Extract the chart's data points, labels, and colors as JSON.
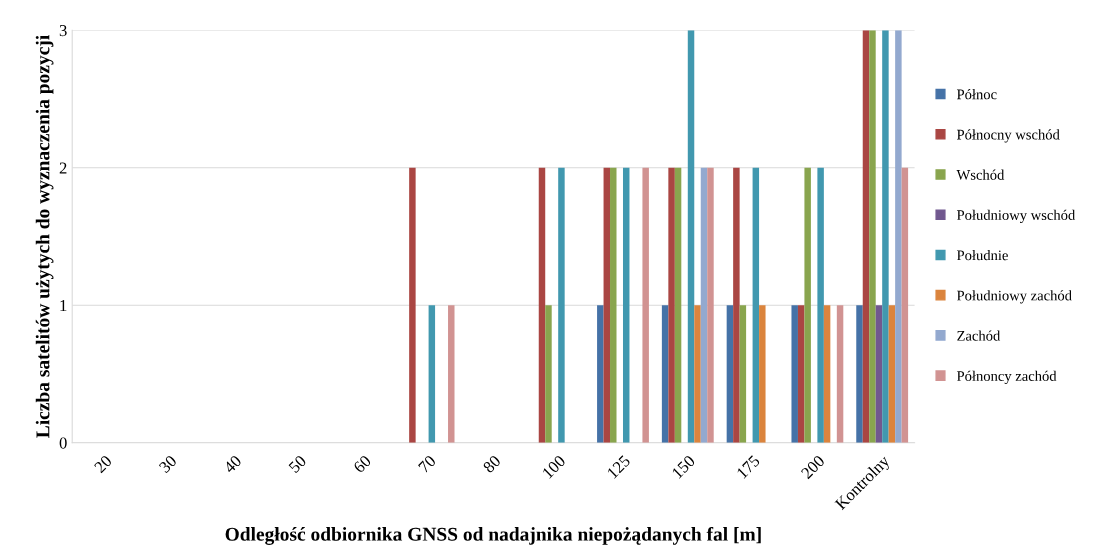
{
  "chart_data": {
    "type": "bar",
    "xlabel": "Odległość odbiornika GNSS od nadajnika niepożądanych fal [m]",
    "ylabel": "Liczba satelitów użytych do wyznaczenia pozycji",
    "categories": [
      "20",
      "30",
      "40",
      "50",
      "60",
      "70",
      "80",
      "100",
      "125",
      "150",
      "175",
      "200",
      "Kontrolny"
    ],
    "series": [
      {
        "name": "Północ",
        "color": "#4572a7",
        "values": [
          0,
          0,
          0,
          0,
          0,
          0,
          0,
          0,
          1,
          1,
          1,
          1,
          1
        ]
      },
      {
        "name": "Północny wschód",
        "color": "#aa4643",
        "values": [
          0,
          0,
          0,
          0,
          0,
          2,
          0,
          2,
          2,
          2,
          2,
          1,
          3
        ]
      },
      {
        "name": "Wschód",
        "color": "#89a54e",
        "values": [
          0,
          0,
          0,
          0,
          0,
          0,
          0,
          1,
          2,
          2,
          1,
          2,
          3
        ]
      },
      {
        "name": "Południowy wschód",
        "color": "#71588f",
        "values": [
          0,
          0,
          0,
          0,
          0,
          0,
          0,
          0,
          0,
          0,
          0,
          0,
          1
        ]
      },
      {
        "name": "Południe",
        "color": "#4198af",
        "values": [
          0,
          0,
          0,
          0,
          0,
          1,
          0,
          2,
          2,
          3,
          2,
          2,
          3
        ]
      },
      {
        "name": "Południowy zachód",
        "color": "#db843d",
        "values": [
          0,
          0,
          0,
          0,
          0,
          0,
          0,
          0,
          0,
          1,
          1,
          1,
          1
        ]
      },
      {
        "name": "Zachód",
        "color": "#93a9cf",
        "values": [
          0,
          0,
          0,
          0,
          0,
          0,
          0,
          0,
          0,
          2,
          0,
          0,
          3
        ]
      },
      {
        "name": "Półnoncy zachód",
        "color": "#d19392",
        "values": [
          0,
          0,
          0,
          0,
          0,
          1,
          0,
          0,
          2,
          2,
          0,
          1,
          2
        ]
      }
    ],
    "ylim": [
      0,
      3
    ],
    "yticks": [
      0,
      1,
      2,
      3
    ],
    "grid": "y",
    "legend": "right"
  }
}
